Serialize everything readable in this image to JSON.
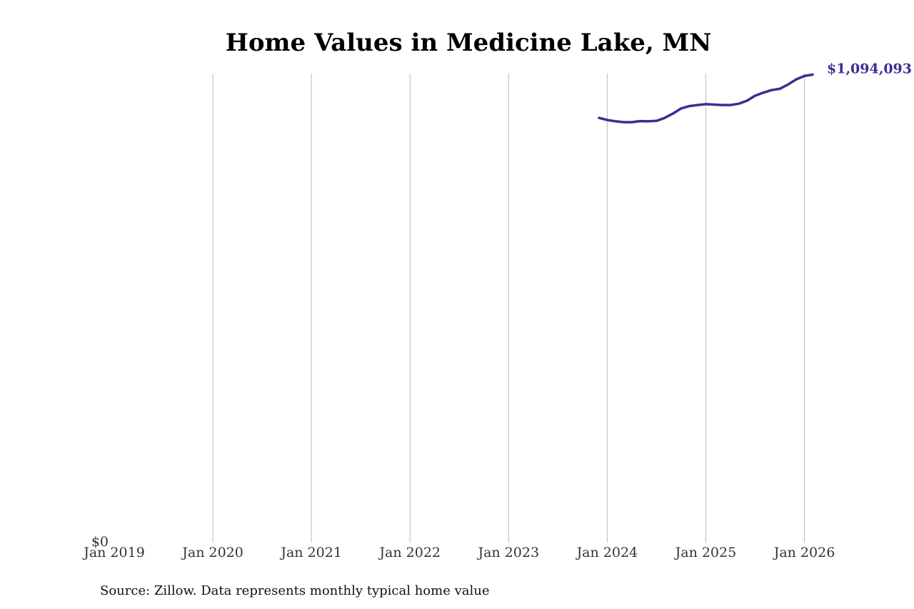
{
  "chart_data": {
    "type": "line",
    "title": "Home Values in Medicine Lake, MN",
    "source": "Source: Zillow. Data represents monthly typical home value",
    "x": [
      "2023-12",
      "2024-01",
      "2024-02",
      "2024-03",
      "2024-04",
      "2024-05",
      "2024-06",
      "2024-07",
      "2024-08",
      "2024-09",
      "2024-10",
      "2024-11",
      "2024-12",
      "2025-01",
      "2025-02",
      "2025-03",
      "2025-04",
      "2025-05",
      "2025-06",
      "2025-07",
      "2025-08",
      "2025-09",
      "2025-10",
      "2025-11",
      "2025-12",
      "2026-01",
      "2026-02"
    ],
    "values": [
      993000,
      988000,
      985000,
      983000,
      983000,
      985500,
      985000,
      986000,
      993000,
      1003000,
      1015000,
      1020500,
      1023000,
      1025000,
      1024000,
      1023000,
      1023000,
      1026000,
      1033000,
      1045000,
      1052000,
      1058000,
      1061000,
      1071000,
      1083000,
      1091000,
      1094093
    ],
    "value_labels": [
      null,
      null,
      null,
      null,
      null,
      null,
      null,
      null,
      null,
      null,
      null,
      null,
      null,
      null,
      null,
      null,
      null,
      null,
      null,
      null,
      null,
      null,
      null,
      null,
      null,
      null,
      "$1,094,093"
    ],
    "color": "#3b2e93",
    "xlim": [
      "2019-01",
      "2026-02"
    ],
    "xticks": [
      {
        "value": "2019-01",
        "label": "Jan 2019"
      },
      {
        "value": "2020-01",
        "label": "Jan 2020"
      },
      {
        "value": "2021-01",
        "label": "Jan 2021"
      },
      {
        "value": "2022-01",
        "label": "Jan 2022"
      },
      {
        "value": "2023-01",
        "label": "Jan 2023"
      },
      {
        "value": "2024-01",
        "label": "Jan 2024"
      },
      {
        "value": "2025-01",
        "label": "Jan 2025"
      },
      {
        "value": "2026-01",
        "label": "Jan 2026"
      }
    ],
    "ylim": [
      0,
      1100000
    ],
    "yticks": [
      {
        "value": 0,
        "label": "$0"
      }
    ],
    "grid": true
  }
}
